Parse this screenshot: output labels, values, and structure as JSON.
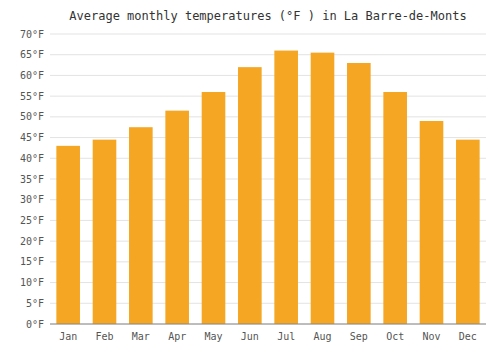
{
  "chart_data": {
    "type": "bar",
    "title": "Average monthly temperatures (°F ) in La Barre-de-Monts",
    "categories": [
      "Jan",
      "Feb",
      "Mar",
      "Apr",
      "May",
      "Jun",
      "Jul",
      "Aug",
      "Sep",
      "Oct",
      "Nov",
      "Dec"
    ],
    "values": [
      43,
      44.5,
      47.5,
      51.5,
      56,
      62,
      66,
      65.5,
      63,
      56,
      49,
      44.5
    ],
    "color": "#F5A623",
    "ylim": [
      0,
      70
    ],
    "yticks": [
      {
        "value": 0,
        "label": "0°F"
      },
      {
        "value": 5,
        "label": "5°F"
      },
      {
        "value": 10,
        "label": "10°F"
      },
      {
        "value": 15,
        "label": "15°F"
      },
      {
        "value": 20,
        "label": "20°F"
      },
      {
        "value": 25,
        "label": "25°F"
      },
      {
        "value": 30,
        "label": "30°F"
      },
      {
        "value": 35,
        "label": "35°F"
      },
      {
        "value": 40,
        "label": "40°F"
      },
      {
        "value": 45,
        "label": "45°F"
      },
      {
        "value": 50,
        "label": "50°F"
      },
      {
        "value": 55,
        "label": "55°F"
      },
      {
        "value": 60,
        "label": "60°F"
      },
      {
        "value": 65,
        "label": "65°F"
      },
      {
        "value": 70,
        "label": "70°F"
      }
    ],
    "grid": true
  }
}
